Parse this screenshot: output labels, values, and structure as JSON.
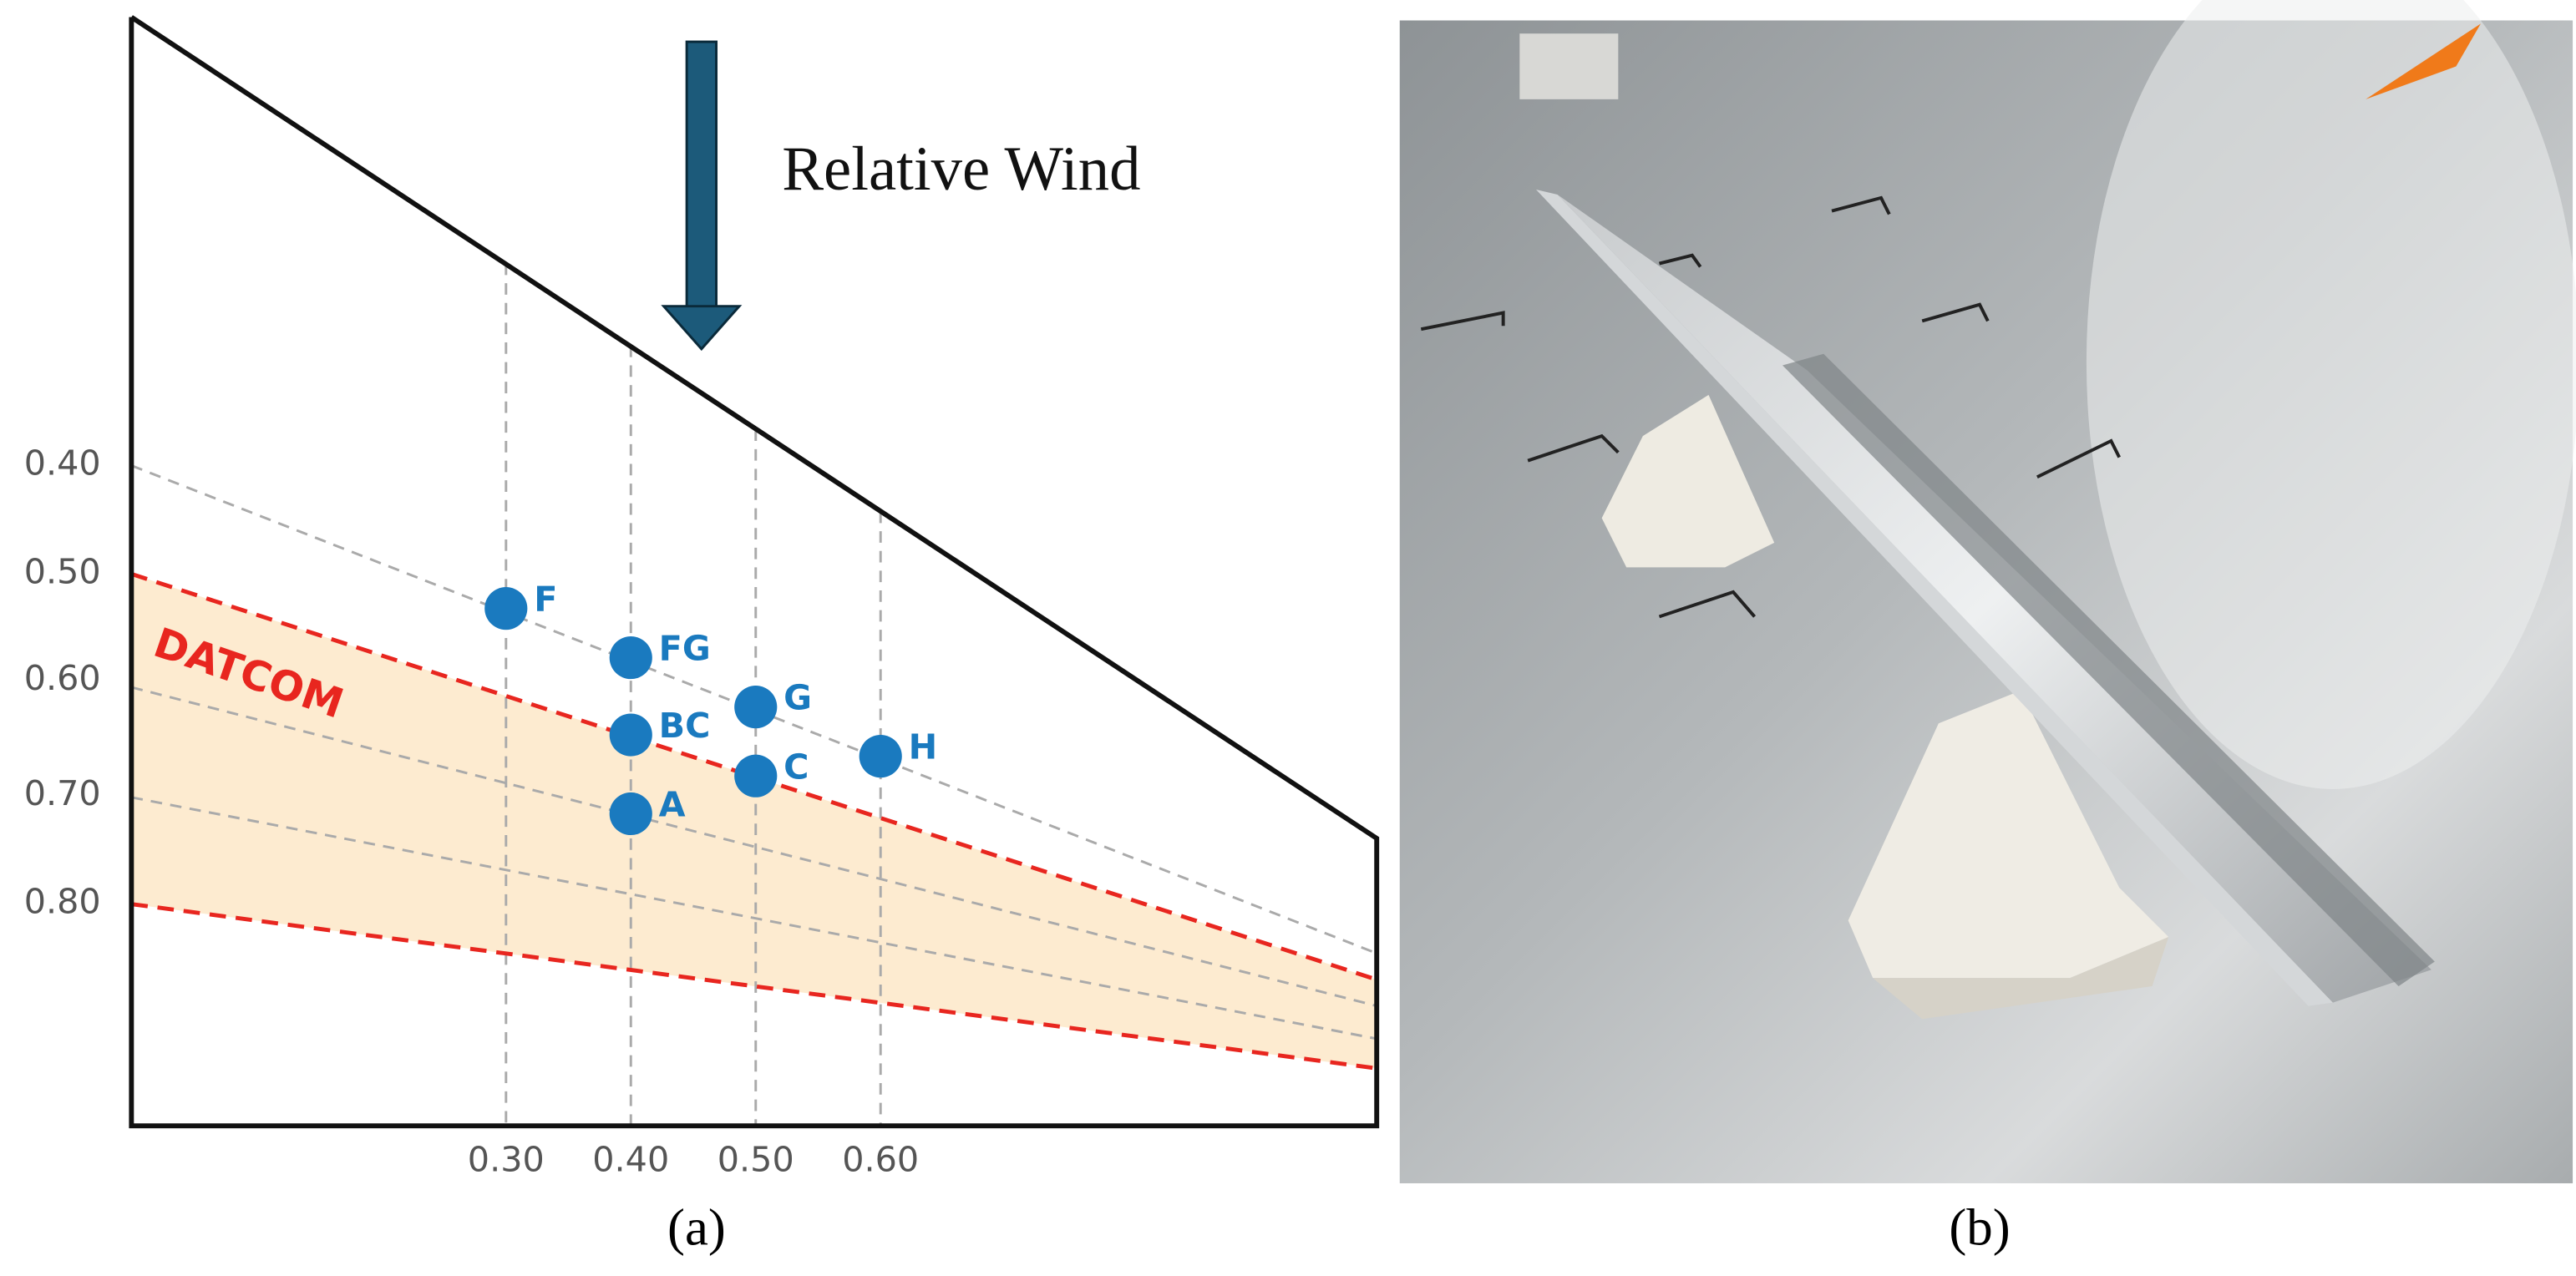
{
  "panel_a": {
    "title": "Relative Wind",
    "annotation": "DATCOM",
    "yticks": [
      "0.40",
      "0.50",
      "0.60",
      "0.70",
      "0.80"
    ],
    "xticks": [
      "0.30",
      "0.40",
      "0.50",
      "0.60"
    ],
    "points": [
      "F",
      "FG",
      "BC",
      "A",
      "G",
      "C",
      "H"
    ],
    "caption": "(a)"
  },
  "panel_b": {
    "caption": "(b)"
  }
}
